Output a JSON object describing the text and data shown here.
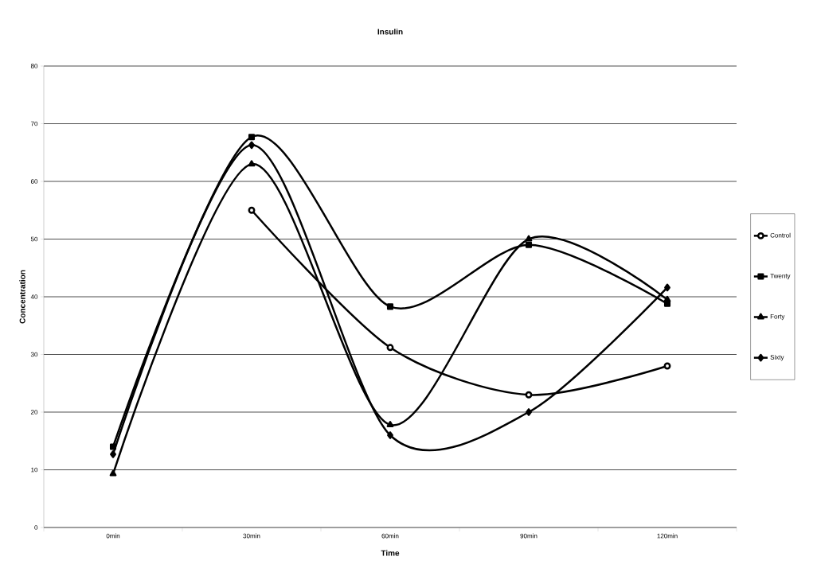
{
  "chart_data": {
    "type": "line",
    "title": "Insulin",
    "xlabel": "Time",
    "ylabel": "Concentration",
    "categories": [
      "0min",
      "30min",
      "60min",
      "90min",
      "120min"
    ],
    "series": [
      {
        "name": "Control",
        "color": "#000000",
        "marker": "circle",
        "values": [
          null,
          55,
          31.2,
          23,
          28
        ]
      },
      {
        "name": "Twenty",
        "color": "#000000",
        "marker": "square",
        "values": [
          14,
          67.7,
          38.3,
          49,
          38.8
        ]
      },
      {
        "name": "Forty",
        "color": "#000000",
        "marker": "triangle",
        "values": [
          9.3,
          63,
          17.8,
          50,
          39.5
        ]
      },
      {
        "name": "Sixty",
        "color": "#000000",
        "marker": "diamond",
        "values": [
          12.7,
          66.3,
          16,
          20,
          41.6
        ]
      }
    ],
    "ylim": [
      0,
      80
    ],
    "yticks": [
      0,
      10,
      20,
      30,
      40,
      50,
      60,
      70,
      80
    ],
    "grid": "y",
    "legend": "right",
    "line_style": "solid"
  }
}
